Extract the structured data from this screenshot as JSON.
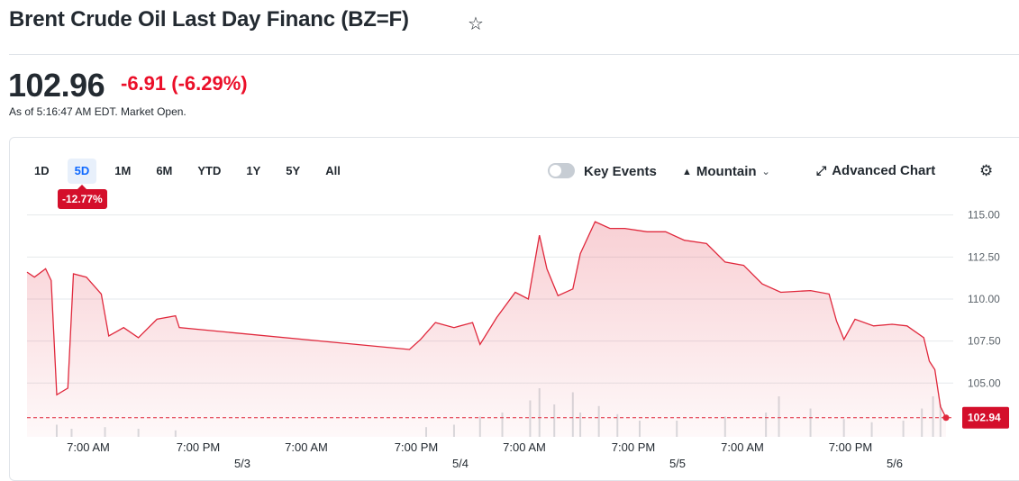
{
  "header": {
    "title": "Brent Crude Oil Last Day Financ (BZ=F)",
    "price": "102.96",
    "change": "-6.91 (-6.29%)",
    "as_of": "As of 5:16:47 AM EDT. Market Open."
  },
  "toolbar": {
    "ranges": [
      "1D",
      "5D",
      "1M",
      "6M",
      "YTD",
      "1Y",
      "5Y",
      "All"
    ],
    "active_range": "5D",
    "range_change": "-12.77%",
    "key_events_label": "Key Events",
    "chart_type_label": "Mountain",
    "advanced_chart_label": "Advanced Chart"
  },
  "icons": {
    "favorite": "star-outline-icon",
    "chart_type": "mountain-icon",
    "expand": "expand-arrows-icon",
    "settings": "gear-icon",
    "dropdown": "chevron-down-icon"
  },
  "colors": {
    "negative": "#eb0f29",
    "line": "#e0283c",
    "active_tab": "#0f69ff"
  },
  "chart_data": {
    "type": "area",
    "current_label": "102.94",
    "y_ticks": [
      "115.00",
      "112.50",
      "110.00",
      "107.50",
      "105.00"
    ],
    "ylim": [
      101.8,
      116.0
    ],
    "x_time_labels": [
      "7:00 AM",
      "7:00 PM",
      "7:00 AM",
      "7:00 PM",
      "7:00 AM",
      "7:00 PM",
      "7:00 AM",
      "7:00 PM"
    ],
    "x_date_labels": [
      "5/3",
      "5/4",
      "5/5",
      "5/6"
    ],
    "grid": true,
    "points": [
      [
        0,
        111.6
      ],
      [
        0.4,
        111.3
      ],
      [
        1,
        111.8
      ],
      [
        1.3,
        111.1
      ],
      [
        1.6,
        104.3
      ],
      [
        2.2,
        104.7
      ],
      [
        2.5,
        111.5
      ],
      [
        3.2,
        111.3
      ],
      [
        4,
        110.3
      ],
      [
        4.4,
        107.8
      ],
      [
        5.2,
        108.3
      ],
      [
        6,
        107.7
      ],
      [
        7,
        108.8
      ],
      [
        8,
        109.0
      ],
      [
        8.2,
        108.3
      ],
      [
        20.6,
        107.0
      ],
      [
        21.2,
        107.6
      ],
      [
        22,
        108.6
      ],
      [
        23,
        108.3
      ],
      [
        24,
        108.6
      ],
      [
        24.4,
        107.3
      ],
      [
        25.3,
        108.9
      ],
      [
        26.3,
        110.4
      ],
      [
        27,
        110.0
      ],
      [
        27.6,
        113.8
      ],
      [
        28,
        111.8
      ],
      [
        28.6,
        110.2
      ],
      [
        29.4,
        110.6
      ],
      [
        29.8,
        112.7
      ],
      [
        30.6,
        114.6
      ],
      [
        31.4,
        114.2
      ],
      [
        32.2,
        114.2
      ],
      [
        33.4,
        114.0
      ],
      [
        34.4,
        114.0
      ],
      [
        35.4,
        113.5
      ],
      [
        36.6,
        113.3
      ],
      [
        37.6,
        112.2
      ],
      [
        38.6,
        112.0
      ],
      [
        39.6,
        110.9
      ],
      [
        40.6,
        110.4
      ],
      [
        42.2,
        110.5
      ],
      [
        43.2,
        110.3
      ],
      [
        43.6,
        108.7
      ],
      [
        44,
        107.6
      ],
      [
        44.6,
        108.8
      ],
      [
        45.6,
        108.4
      ],
      [
        46.6,
        108.5
      ],
      [
        47.4,
        108.4
      ],
      [
        48.3,
        107.7
      ],
      [
        48.6,
        106.3
      ],
      [
        48.9,
        105.8
      ],
      [
        49.2,
        103.6
      ],
      [
        49.5,
        102.94
      ]
    ],
    "volume": [
      [
        1.6,
        0.15
      ],
      [
        2.4,
        0.1
      ],
      [
        4.2,
        0.12
      ],
      [
        6,
        0.1
      ],
      [
        8,
        0.08
      ],
      [
        21.5,
        0.12
      ],
      [
        23,
        0.15
      ],
      [
        24.4,
        0.25
      ],
      [
        25.6,
        0.3
      ],
      [
        27.1,
        0.45
      ],
      [
        27.6,
        0.6
      ],
      [
        28.4,
        0.4
      ],
      [
        29.4,
        0.55
      ],
      [
        29.8,
        0.3
      ],
      [
        30.8,
        0.38
      ],
      [
        31.8,
        0.28
      ],
      [
        33,
        0.2
      ],
      [
        35,
        0.2
      ],
      [
        37.6,
        0.25
      ],
      [
        39.8,
        0.3
      ],
      [
        40.5,
        0.5
      ],
      [
        42.2,
        0.35
      ],
      [
        44,
        0.22
      ],
      [
        45.5,
        0.18
      ],
      [
        47.2,
        0.2
      ],
      [
        48.2,
        0.35
      ],
      [
        48.8,
        0.5
      ],
      [
        49.2,
        0.4
      ]
    ]
  }
}
